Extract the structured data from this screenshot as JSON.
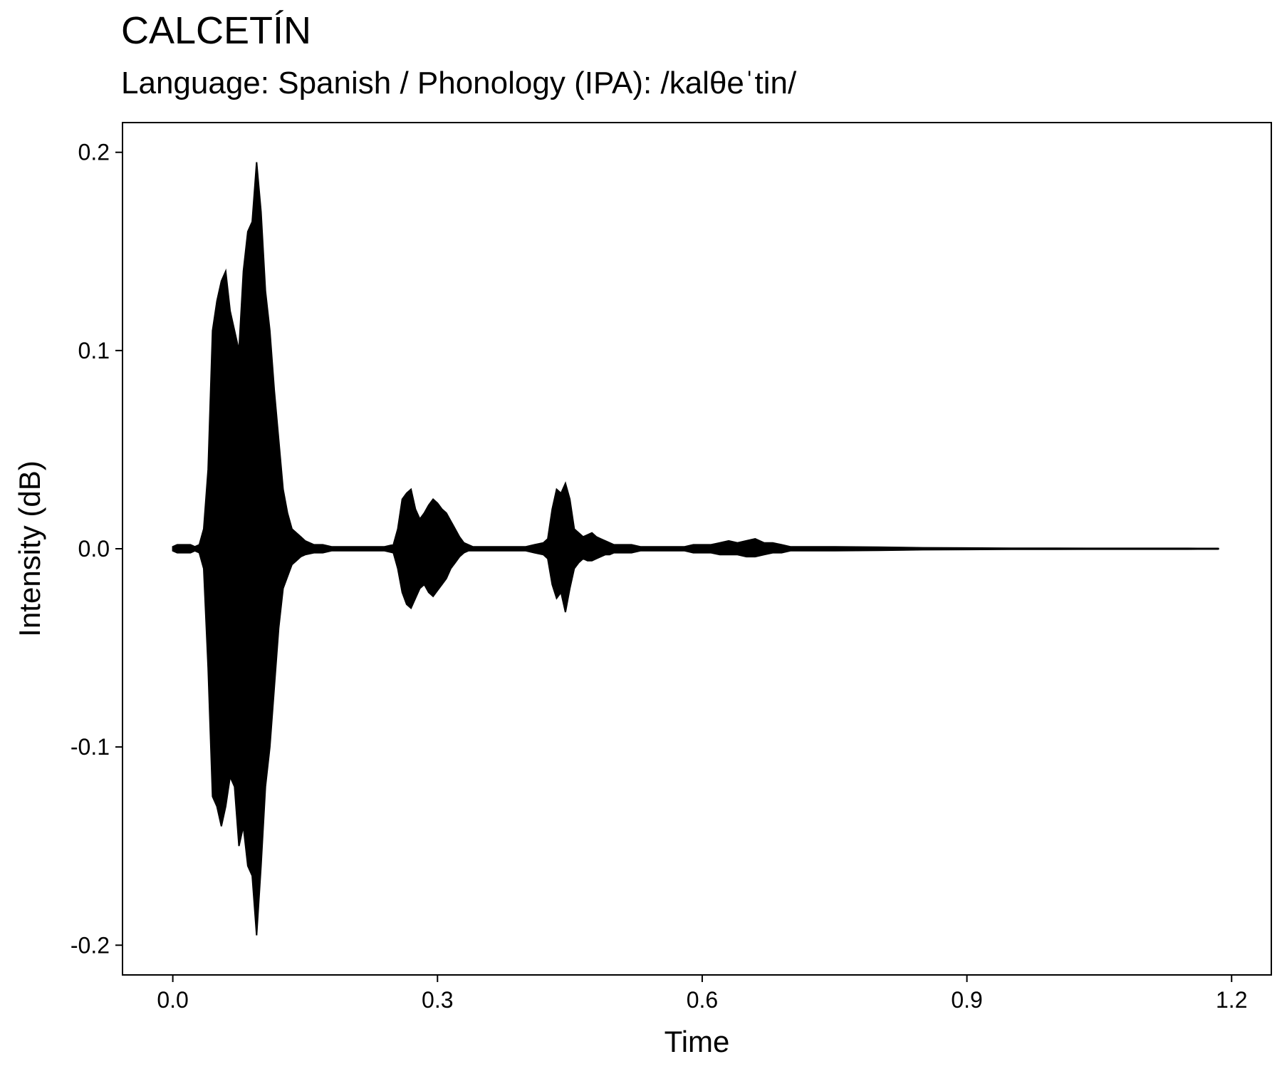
{
  "chart_data": {
    "type": "line",
    "title": "CALCETÍN",
    "subtitle": "Language: Spanish / Phonology (IPA): /kalθeˈtin/",
    "xlabel": "Time",
    "ylabel": "Intensity (dB)",
    "xlim": [
      -0.057,
      1.245
    ],
    "ylim": [
      -0.215,
      0.215
    ],
    "x_ticks": [
      0.0,
      0.3,
      0.6,
      0.9,
      1.2
    ],
    "x_tick_labels": [
      "0.0",
      "0.3",
      "0.6",
      "0.9",
      "1.2"
    ],
    "y_ticks": [
      -0.2,
      -0.1,
      0.0,
      0.1,
      0.2
    ],
    "y_tick_labels": [
      "-0.2",
      "-0.1",
      "0.0",
      "0.1",
      "0.2"
    ],
    "grid": false,
    "legend": "none",
    "line_color": "#000000",
    "series": [
      {
        "x": [
          0.0,
          0.005,
          0.01,
          0.015,
          0.02,
          0.025,
          0.03,
          0.035,
          0.04,
          0.045,
          0.05,
          0.055,
          0.06,
          0.065,
          0.07,
          0.075,
          0.08,
          0.085,
          0.09,
          0.095,
          0.1,
          0.105,
          0.11,
          0.115,
          0.12,
          0.125,
          0.13,
          0.135,
          0.14,
          0.145,
          0.15,
          0.16,
          0.17,
          0.18,
          0.19,
          0.2,
          0.21,
          0.22,
          0.23,
          0.24,
          0.25,
          0.255,
          0.26,
          0.265,
          0.27,
          0.275,
          0.28,
          0.285,
          0.29,
          0.295,
          0.3,
          0.305,
          0.31,
          0.315,
          0.32,
          0.325,
          0.33,
          0.335,
          0.34,
          0.345,
          0.35,
          0.36,
          0.37,
          0.38,
          0.39,
          0.4,
          0.41,
          0.42,
          0.425,
          0.43,
          0.435,
          0.44,
          0.445,
          0.45,
          0.455,
          0.46,
          0.465,
          0.47,
          0.475,
          0.48,
          0.485,
          0.49,
          0.495,
          0.5,
          0.51,
          0.52,
          0.53,
          0.54,
          0.55,
          0.56,
          0.57,
          0.58,
          0.59,
          0.6,
          0.61,
          0.62,
          0.63,
          0.64,
          0.65,
          0.66,
          0.67,
          0.68,
          0.69,
          0.7,
          0.75,
          0.8,
          0.85,
          0.9,
          0.95,
          1.0,
          1.05,
          1.1,
          1.15,
          1.185
        ],
        "max": [
          0.001,
          0.002,
          0.002,
          0.002,
          0.002,
          0.001,
          0.002,
          0.01,
          0.04,
          0.11,
          0.125,
          0.135,
          0.14,
          0.12,
          0.11,
          0.1,
          0.14,
          0.16,
          0.165,
          0.195,
          0.17,
          0.13,
          0.11,
          0.08,
          0.055,
          0.03,
          0.018,
          0.01,
          0.008,
          0.006,
          0.004,
          0.002,
          0.002,
          0.001,
          0.001,
          0.001,
          0.001,
          0.001,
          0.001,
          0.001,
          0.002,
          0.01,
          0.025,
          0.028,
          0.03,
          0.02,
          0.015,
          0.018,
          0.022,
          0.025,
          0.023,
          0.02,
          0.018,
          0.014,
          0.01,
          0.006,
          0.003,
          0.002,
          0.001,
          0.001,
          0.001,
          0.001,
          0.001,
          0.001,
          0.001,
          0.001,
          0.002,
          0.003,
          0.005,
          0.02,
          0.03,
          0.028,
          0.033,
          0.025,
          0.01,
          0.008,
          0.006,
          0.007,
          0.008,
          0.006,
          0.005,
          0.004,
          0.003,
          0.002,
          0.002,
          0.002,
          0.001,
          0.001,
          0.001,
          0.001,
          0.001,
          0.001,
          0.002,
          0.002,
          0.002,
          0.003,
          0.004,
          0.003,
          0.004,
          0.005,
          0.003,
          0.003,
          0.002,
          0.001,
          0.001,
          0.0008,
          0.0005,
          0.0004,
          0.0003,
          0.0003,
          0.0002,
          0.0002,
          0.0002,
          0.0001
        ],
        "min": [
          -0.001,
          -0.002,
          -0.002,
          -0.002,
          -0.002,
          -0.001,
          -0.002,
          -0.01,
          -0.06,
          -0.125,
          -0.13,
          -0.14,
          -0.13,
          -0.115,
          -0.12,
          -0.15,
          -0.14,
          -0.16,
          -0.165,
          -0.195,
          -0.16,
          -0.12,
          -0.1,
          -0.07,
          -0.04,
          -0.02,
          -0.014,
          -0.008,
          -0.006,
          -0.004,
          -0.003,
          -0.002,
          -0.002,
          -0.001,
          -0.001,
          -0.001,
          -0.001,
          -0.001,
          -0.001,
          -0.001,
          -0.002,
          -0.01,
          -0.022,
          -0.028,
          -0.03,
          -0.025,
          -0.02,
          -0.018,
          -0.022,
          -0.024,
          -0.021,
          -0.018,
          -0.015,
          -0.01,
          -0.007,
          -0.004,
          -0.002,
          -0.001,
          -0.001,
          -0.001,
          -0.001,
          -0.001,
          -0.001,
          -0.001,
          -0.001,
          -0.001,
          -0.002,
          -0.003,
          -0.005,
          -0.018,
          -0.025,
          -0.022,
          -0.032,
          -0.02,
          -0.01,
          -0.007,
          -0.005,
          -0.006,
          -0.006,
          -0.005,
          -0.004,
          -0.003,
          -0.003,
          -0.002,
          -0.002,
          -0.002,
          -0.001,
          -0.001,
          -0.001,
          -0.001,
          -0.001,
          -0.001,
          -0.002,
          -0.002,
          -0.002,
          -0.003,
          -0.003,
          -0.003,
          -0.004,
          -0.004,
          -0.003,
          -0.002,
          -0.002,
          -0.001,
          -0.001,
          -0.0008,
          -0.0005,
          -0.0004,
          -0.0003,
          -0.0003,
          -0.0002,
          -0.0002,
          -0.0002,
          -0.0001
        ]
      }
    ]
  }
}
